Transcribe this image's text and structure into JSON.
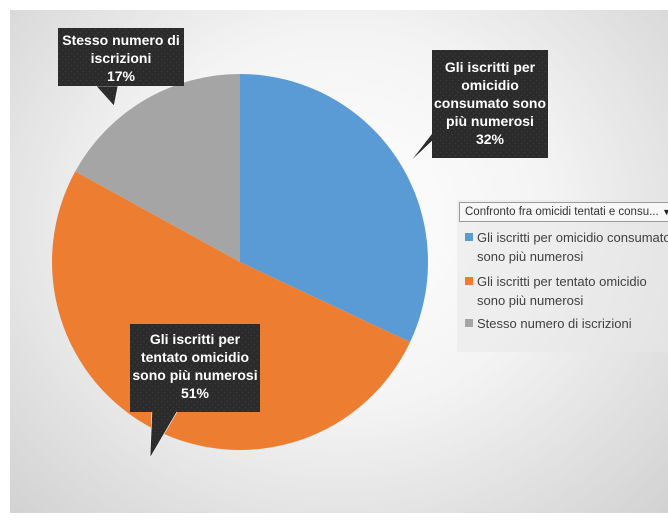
{
  "chart_data": {
    "type": "pie",
    "categories": [
      "Gli iscritti per omicidio consumato sono più numerosi",
      "Gli iscritti per tentato omicidio sono più numerosi",
      "Stesso numero di iscrizioni"
    ],
    "values": [
      32,
      51,
      17
    ],
    "colors": [
      "#5b9bd5",
      "#ed7d31",
      "#a5a5a5"
    ],
    "data_labels": [
      [
        "Gli iscritti per",
        "omicidio",
        "consumato sono",
        "più numerosi",
        "32%"
      ],
      [
        "Gli iscritti per",
        "tentato omicidio",
        "sono più numerosi",
        "51%"
      ],
      [
        "Stesso numero di",
        "iscrizioni",
        "17%"
      ]
    ],
    "legend_placement": "right"
  },
  "legend": {
    "dropdown_label": "Confronto fra omicidi tentati e consu...",
    "items": [
      "Gli iscritti per omicidio consumato sono più numerosi",
      "Gli iscritti per tentato omicidio sono più numerosi",
      "Stesso numero di iscrizioni"
    ]
  }
}
